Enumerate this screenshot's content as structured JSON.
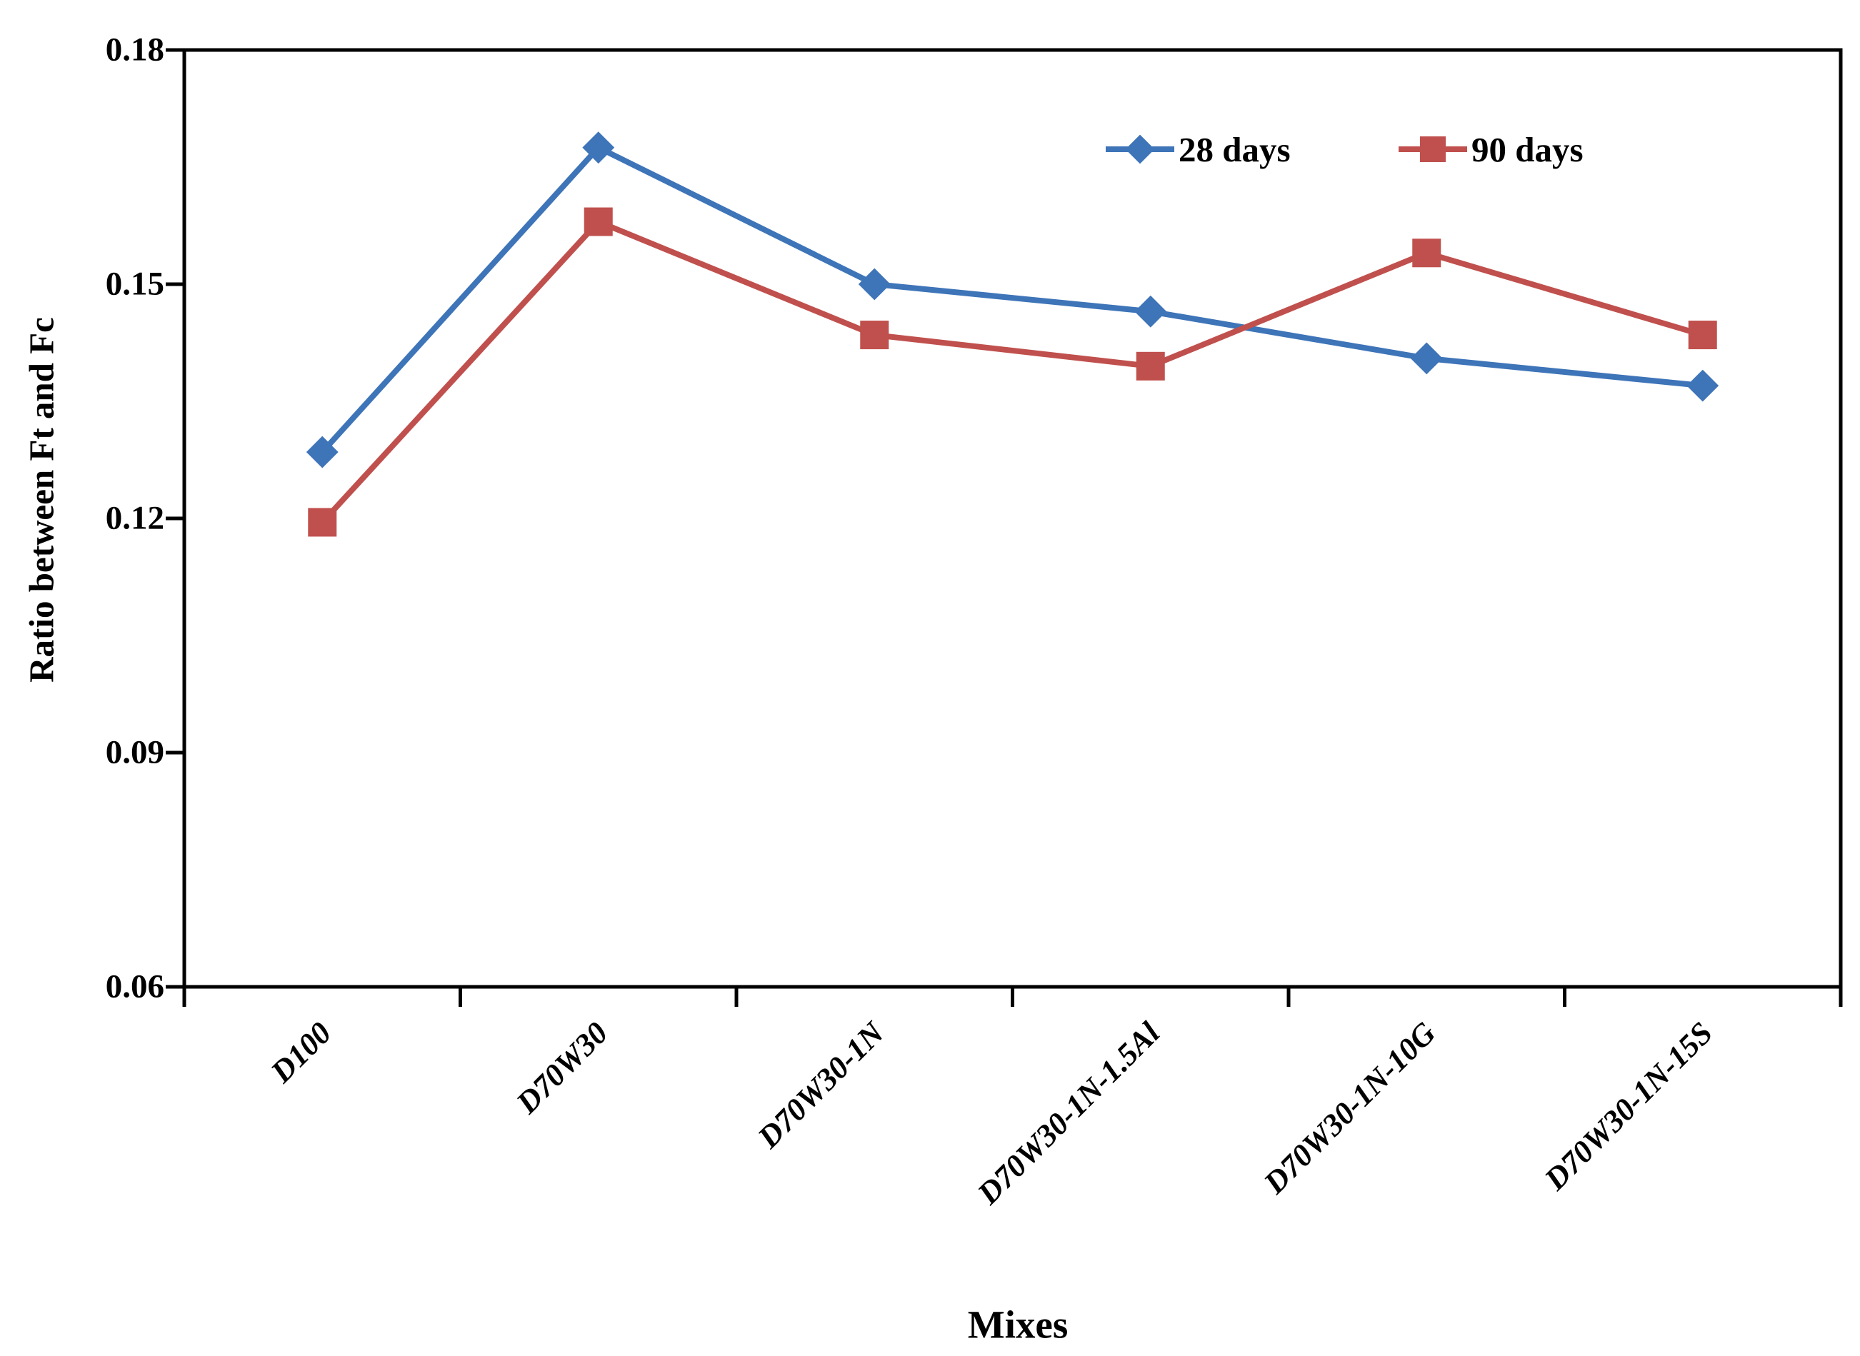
{
  "chart_data": {
    "type": "line",
    "categories": [
      "D100",
      "D70W30",
      "D70W30-1N",
      "D70W30-1N-1.5Al",
      "D70W30-1N-10G",
      "D70W30-1N-15S"
    ],
    "series": [
      {
        "name": "28 days",
        "color": "#3E74B8",
        "marker": "diamond",
        "values": [
          0.1285,
          0.1675,
          0.15,
          0.1465,
          0.1405,
          0.137
        ]
      },
      {
        "name": "90 days",
        "color": "#C0504D",
        "marker": "square",
        "values": [
          0.1195,
          0.158,
          0.1435,
          0.1395,
          0.154,
          0.1435
        ]
      }
    ],
    "xlabel": "Mixes",
    "ylabel": "Ratio between Ft and Fc",
    "ylim": [
      0.06,
      0.18
    ],
    "yticks": [
      0.06,
      0.09,
      0.12,
      0.15,
      0.18
    ],
    "ytick_labels": [
      "0.06",
      "0.09",
      "0.12",
      "0.15",
      "0.18"
    ],
    "grid": false,
    "legend_position": "top-right-inside",
    "axis_color": "#000000"
  }
}
